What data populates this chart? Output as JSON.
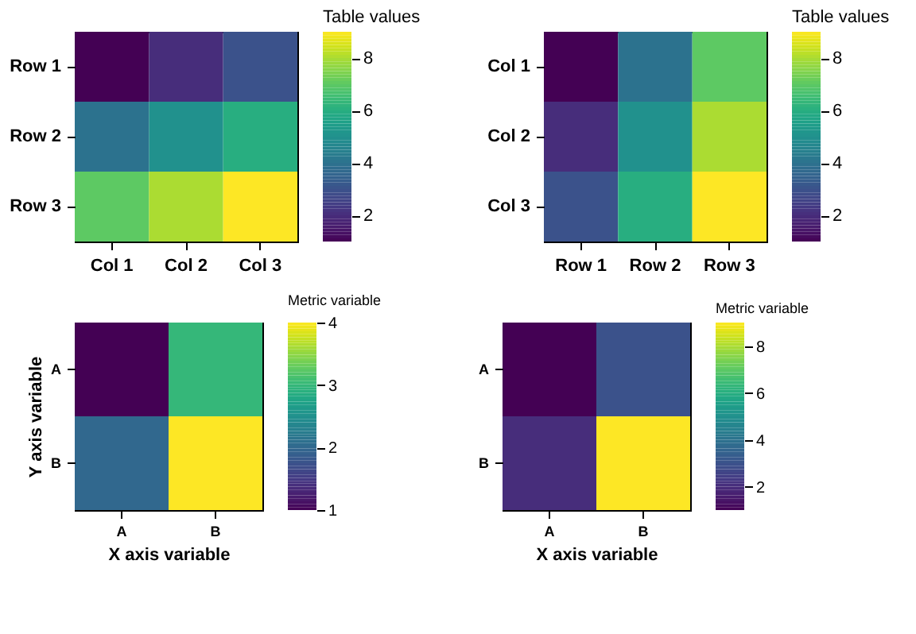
{
  "chart_data": [
    {
      "type": "heatmap",
      "categories": [
        "Col 1",
        "Col 2",
        "Col 3"
      ],
      "y_categories": [
        "Row 1",
        "Row 2",
        "Row 3"
      ],
      "cells": [
        [
          1,
          2,
          3
        ],
        [
          4,
          5,
          6
        ],
        [
          7,
          8,
          9
        ]
      ],
      "clim": [
        1,
        9
      ],
      "cticks": [
        2,
        4,
        6,
        8
      ],
      "clabel": "Table values"
    },
    {
      "type": "heatmap",
      "categories": [
        "Row 1",
        "Row 2",
        "Row 3"
      ],
      "y_categories": [
        "Col 1",
        "Col 2",
        "Col 3"
      ],
      "cells": [
        [
          1,
          4,
          7
        ],
        [
          2,
          5,
          8
        ],
        [
          3,
          6,
          9
        ]
      ],
      "clim": [
        1,
        9
      ],
      "cticks": [
        2,
        4,
        6,
        8
      ],
      "clabel": "Table values"
    },
    {
      "type": "heatmap",
      "categories": [
        "A",
        "B"
      ],
      "y_categories": [
        "A",
        "B"
      ],
      "cells": [
        [
          1,
          3
        ],
        [
          2,
          4
        ]
      ],
      "clim": [
        1,
        4
      ],
      "cticks": [
        1,
        2,
        3,
        4
      ],
      "clabel": "Metric variable",
      "xlabel": "X axis variable",
      "ylabel": "Y axis variable"
    },
    {
      "type": "heatmap",
      "categories": [
        "A",
        "B"
      ],
      "y_categories": [
        "A",
        "B"
      ],
      "cells": [
        [
          1,
          3
        ],
        [
          2,
          9
        ]
      ],
      "clim": [
        1,
        9
      ],
      "cticks": [
        2,
        4,
        6,
        8
      ],
      "clabel": "Metric variable",
      "xlabel": "X axis variable"
    }
  ]
}
